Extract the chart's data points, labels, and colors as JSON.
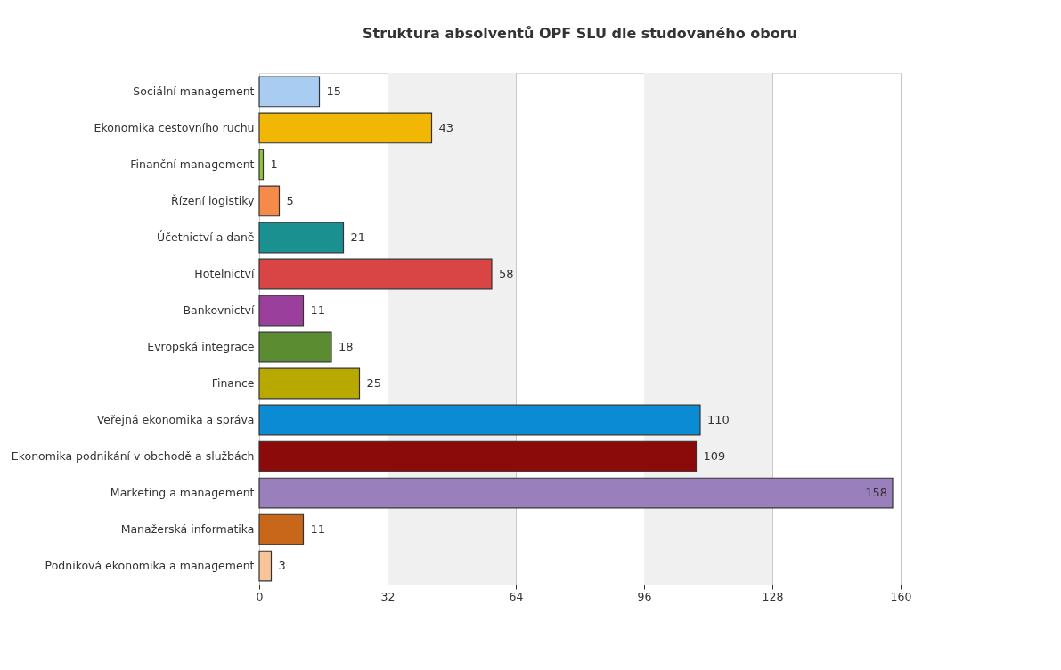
{
  "chart_data": {
    "type": "bar",
    "orientation": "horizontal",
    "title": "Struktura absolventů OPF SLU dle studovaného oboru",
    "categories": [
      "Sociální management",
      "Ekonomika cestovního ruchu",
      "Finanční management",
      "Řízení logistiky",
      "Účetnictví a daně",
      "Hotelnictví",
      "Bankovnictví",
      "Evropská integrace",
      "Finance",
      "Veřejná ekonomika a správa",
      "Ekonomika podnikání v obchodě a službách",
      "Marketing a management",
      "Manažerská informatika",
      "Podniková ekonomika a management"
    ],
    "values": [
      15,
      43,
      1,
      5,
      21,
      58,
      11,
      18,
      25,
      110,
      109,
      158,
      11,
      3
    ],
    "colors": [
      "#a9cdf2",
      "#f2b705",
      "#8fc640",
      "#f58a4b",
      "#1a9090",
      "#d94545",
      "#9b3f9d",
      "#5b8c32",
      "#b8a900",
      "#0a8bd3",
      "#8b0a0a",
      "#9a7fbd",
      "#c8661a",
      "#f7c597"
    ],
    "xlim": [
      0,
      160
    ],
    "xticks": [
      0,
      32,
      64,
      96,
      128,
      160
    ],
    "grid": "x",
    "data_labels": true,
    "bands": [
      {
        "axis": "x",
        "from": 32,
        "to": 64,
        "color": "#f0f0f0"
      },
      {
        "axis": "x",
        "from": 96,
        "to": 128,
        "color": "#f0f0f0"
      }
    ]
  }
}
